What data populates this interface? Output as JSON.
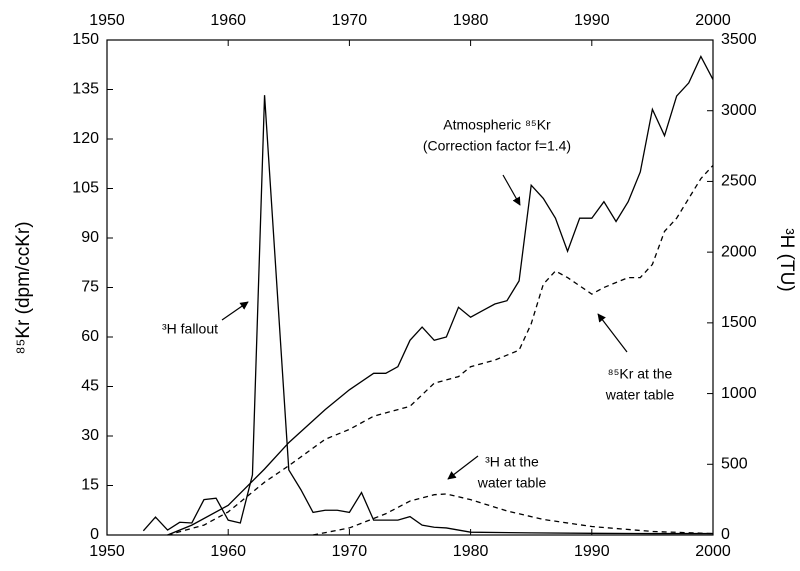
{
  "chart_data": {
    "type": "line",
    "y_label": "⁸⁵Kr (dpm/ccKr)",
    "y2_label": "³H (TU)",
    "xlim": [
      1950,
      2000
    ],
    "xticks": [
      1950,
      1960,
      1970,
      1980,
      1990,
      2000
    ],
    "ylim": [
      0,
      150
    ],
    "yticks": [
      0,
      15,
      30,
      45,
      60,
      75,
      90,
      105,
      120,
      135,
      150
    ],
    "y2lim": [
      0,
      3500
    ],
    "y2ticks": [
      0,
      500,
      1000,
      1500,
      2000,
      2500,
      3000,
      3500
    ],
    "series": [
      {
        "color": "#000000",
        "dash": false,
        "x": [
          1955,
          1957,
          1960,
          1963,
          1965,
          1968,
          1970,
          1972,
          1973,
          1974,
          1975,
          1976,
          1977,
          1978,
          1979,
          1980,
          1981,
          1982,
          1983,
          1984,
          1985,
          1986,
          1987,
          1988,
          1989,
          1990,
          1991,
          1992,
          1993,
          1994,
          1995,
          1996,
          1997,
          1998,
          1999,
          2000
        ],
        "values": [
          0,
          3,
          9,
          20,
          28,
          38,
          44,
          49,
          49,
          51,
          59,
          63,
          59,
          60,
          69,
          66,
          68,
          70,
          71,
          77,
          106,
          102,
          96,
          86,
          96,
          96,
          101,
          95,
          101,
          110,
          129,
          121,
          133,
          137,
          145,
          138
        ]
      },
      {
        "color": "#000000",
        "dash": true,
        "x": [
          1955,
          1958,
          1960,
          1963,
          1965,
          1968,
          1970,
          1972,
          1974,
          1975,
          1977,
          1978,
          1979,
          1980,
          1982,
          1984,
          1985,
          1986,
          1987,
          1988,
          1990,
          1991,
          1993,
          1994,
          1995,
          1996,
          1997,
          1998,
          1999,
          2000
        ],
        "values": [
          0,
          3,
          7,
          16,
          21,
          29,
          32,
          36,
          38,
          39,
          46,
          47,
          48,
          51,
          53,
          56,
          64,
          76,
          80,
          78,
          73,
          75,
          78,
          78,
          82,
          92,
          96,
          102,
          108,
          112
        ]
      },
      {
        "color": "#000000",
        "dash": false,
        "axis": "y2",
        "x": [
          1953,
          1954,
          1955,
          1956,
          1957,
          1958,
          1959,
          1960,
          1961,
          1962,
          1963,
          1965,
          1966,
          1967,
          1968,
          1969,
          1970,
          1971,
          1972,
          1973,
          1974,
          1975,
          1976,
          1977,
          1978,
          1979,
          1980,
          1985,
          1990,
          1995,
          2000
        ],
        "values": [
          30,
          127,
          35,
          90,
          85,
          250,
          260,
          105,
          85,
          425,
          3110,
          460,
          320,
          160,
          175,
          175,
          160,
          300,
          105,
          105,
          105,
          130,
          70,
          55,
          50,
          35,
          20,
          15,
          12,
          10,
          10
        ]
      },
      {
        "color": "#000000",
        "dash": true,
        "axis": "y2",
        "x": [
          1967,
          1970,
          1973,
          1975,
          1977,
          1978,
          1980,
          1983,
          1986,
          1990,
          1995,
          2000
        ],
        "values": [
          0,
          50,
          150,
          240,
          285,
          290,
          250,
          170,
          110,
          60,
          25,
          10
        ]
      }
    ],
    "annotations": [
      {
        "lines": [
          "Atmospheric ⁸⁵Kr",
          "(Correction factor f=1.4)"
        ]
      },
      {
        "lines": [
          "³H fallout"
        ]
      },
      {
        "lines": [
          "⁸⁵Kr at the",
          "water table"
        ]
      },
      {
        "lines": [
          "³H at the",
          "water table"
        ]
      }
    ]
  }
}
